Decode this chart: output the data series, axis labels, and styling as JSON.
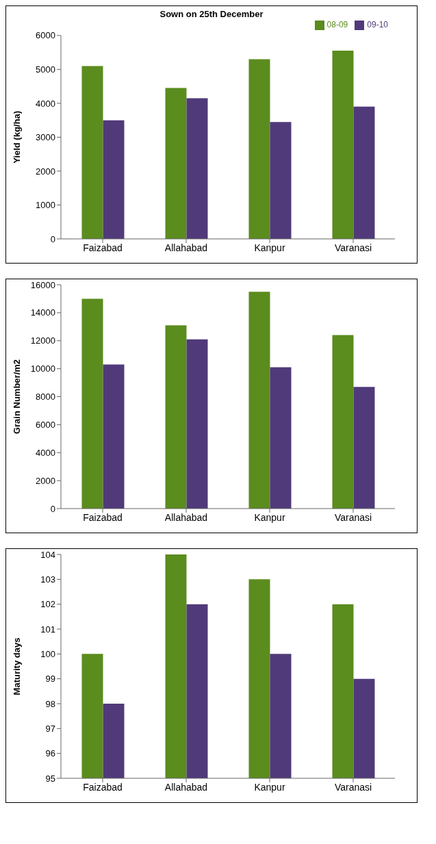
{
  "chart_data": [
    {
      "type": "bar",
      "title": "Sown on 25th December",
      "ylabel": "Yield  (kg/ha)",
      "categories": [
        "Faizabad",
        "Allahabad",
        "Kanpur",
        "Varanasi"
      ],
      "series": [
        {
          "name": "08-09",
          "color": "#5b8c1e",
          "values": [
            5100,
            4450,
            5300,
            5550
          ]
        },
        {
          "name": "09-10",
          "color": "#503a7a",
          "values": [
            3500,
            4150,
            3450,
            3900
          ]
        }
      ],
      "ylim": [
        0,
        6000
      ],
      "yticks": [
        0,
        1000,
        2000,
        3000,
        4000,
        5000,
        6000
      ],
      "legend": "top right"
    },
    {
      "type": "bar",
      "ylabel": "Grain Number/m2",
      "categories": [
        "Faizabad",
        "Allahabad",
        "Kanpur",
        "Varanasi"
      ],
      "series": [
        {
          "color": "#5b8c1e",
          "values": [
            15000,
            13100,
            15500,
            12400
          ]
        },
        {
          "color": "#503a7a",
          "values": [
            10300,
            12100,
            10100,
            8700
          ]
        }
      ],
      "ylim": [
        0,
        16000
      ],
      "yticks": [
        0,
        2000,
        4000,
        6000,
        8000,
        10000,
        12000,
        14000,
        16000
      ]
    },
    {
      "type": "bar",
      "ylabel": "Maturity days",
      "categories": [
        "Faizabad",
        "Allahabad",
        "Kanpur",
        "Varanasi"
      ],
      "series": [
        {
          "color": "#5b8c1e",
          "values": [
            100,
            104,
            103,
            102
          ]
        },
        {
          "color": "#503a7a",
          "values": [
            98,
            102,
            100,
            99
          ]
        }
      ],
      "ylim": [
        95,
        104
      ],
      "yticks": [
        95,
        96,
        97,
        98,
        99,
        100,
        101,
        102,
        103,
        104
      ]
    }
  ]
}
